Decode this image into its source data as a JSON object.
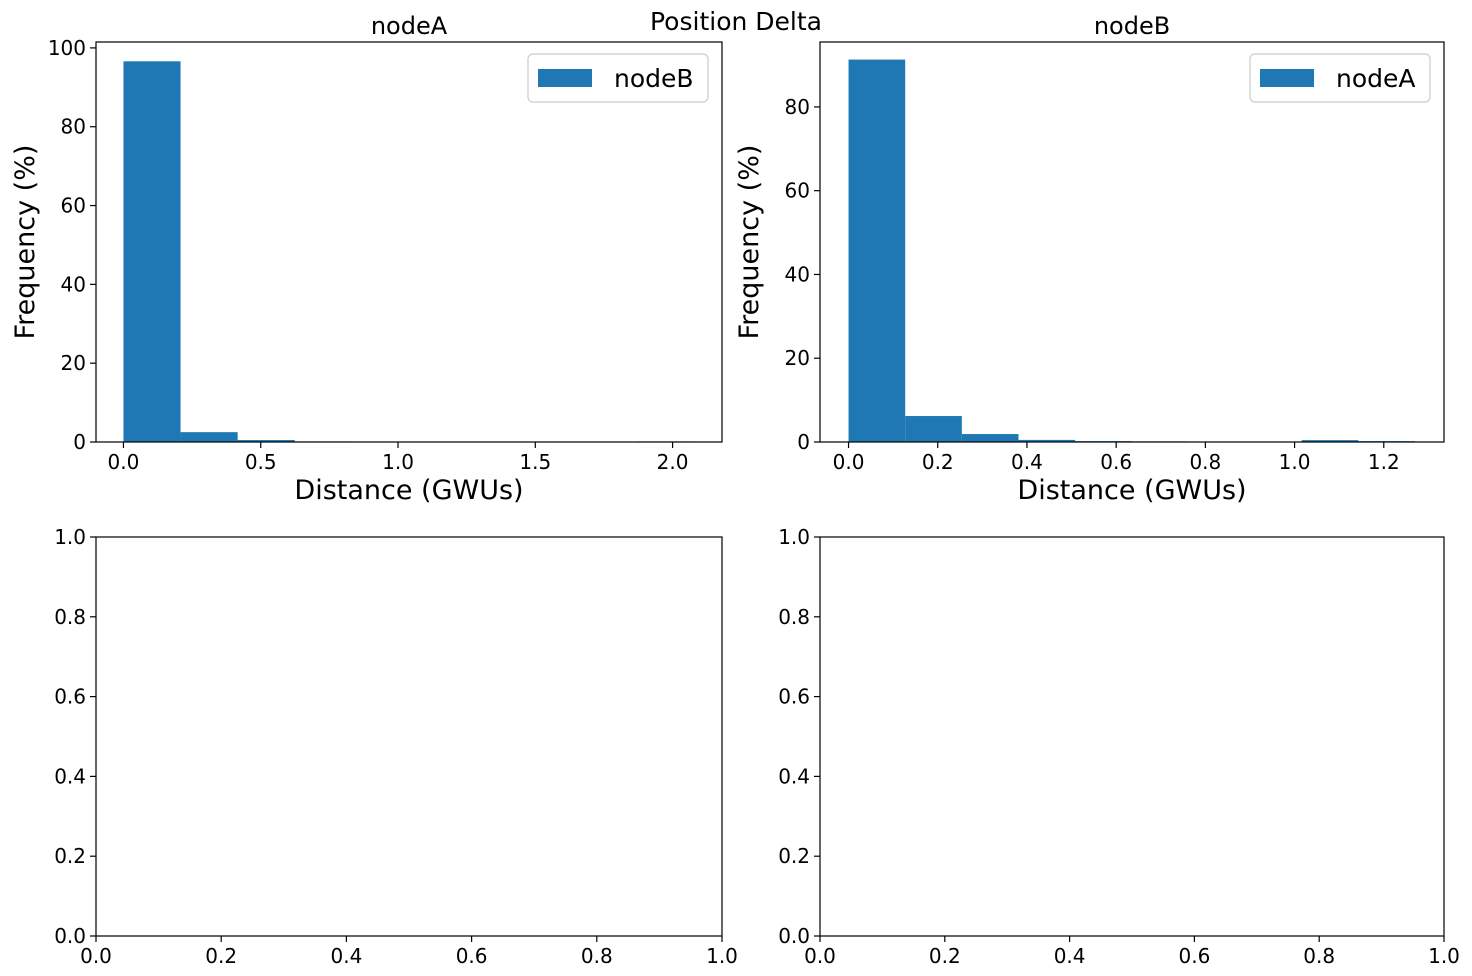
{
  "figure": {
    "suptitle": "Position Delta"
  },
  "colors": {
    "bar": "#1f77b4",
    "axis": "#000000",
    "background": "#ffffff"
  },
  "chart_data": [
    {
      "type": "bar",
      "title": "nodeA",
      "xlabel": "Distance (GWUs)",
      "ylabel": "Frequency (%)",
      "legend": {
        "label": "nodeB",
        "placement": "top-right"
      },
      "xlim": [
        -0.1,
        2.18
      ],
      "ylim": [
        0,
        101.5
      ],
      "xticks": [
        0.0,
        0.5,
        1.0,
        1.5,
        2.0
      ],
      "xtick_labels": [
        "0.0",
        "0.5",
        "1.0",
        "1.5",
        "2.0"
      ],
      "yticks": [
        0,
        20,
        40,
        60,
        80,
        100
      ],
      "ytick_labels": [
        "0",
        "20",
        "40",
        "60",
        "80",
        "100"
      ],
      "bin_edges": [
        0.0,
        0.208,
        0.416,
        0.624,
        0.832,
        1.04,
        1.248,
        1.456,
        1.664,
        1.872,
        2.08
      ],
      "values": [
        96.6,
        2.5,
        0.5,
        0.15,
        0.1,
        0.1,
        0.05,
        0.0,
        0.0,
        0.15
      ]
    },
    {
      "type": "bar",
      "title": "nodeB",
      "xlabel": "Distance (GWUs)",
      "ylabel": "Frequency (%)",
      "legend": {
        "label": "nodeA",
        "placement": "top-right"
      },
      "xlim": [
        -0.064,
        1.335
      ],
      "ylim": [
        0,
        95.5
      ],
      "xticks": [
        0.0,
        0.2,
        0.4,
        0.6,
        0.8,
        1.0,
        1.2
      ],
      "xtick_labels": [
        "0.0",
        "0.2",
        "0.4",
        "0.6",
        "0.8",
        "1.0",
        "1.2"
      ],
      "yticks": [
        0,
        20,
        40,
        60,
        80
      ],
      "ytick_labels": [
        "0",
        "20",
        "40",
        "60",
        "80"
      ],
      "bin_edges": [
        0.0,
        0.127,
        0.254,
        0.381,
        0.508,
        0.635,
        0.762,
        0.889,
        1.016,
        1.143,
        1.27
      ],
      "values": [
        91.3,
        6.2,
        1.9,
        0.5,
        0.2,
        0.15,
        0.0,
        0.0,
        0.45,
        0.2
      ]
    },
    {
      "type": "bar",
      "title": "",
      "xlabel": "",
      "ylabel": "",
      "xlim": [
        0,
        1
      ],
      "ylim": [
        0,
        1
      ],
      "xticks": [
        0.0,
        0.2,
        0.4,
        0.6,
        0.8,
        1.0
      ],
      "xtick_labels": [
        "0.0",
        "0.2",
        "0.4",
        "0.6",
        "0.8",
        "1.0"
      ],
      "yticks": [
        0.0,
        0.2,
        0.4,
        0.6,
        0.8,
        1.0
      ],
      "ytick_labels": [
        "0.0",
        "0.2",
        "0.4",
        "0.6",
        "0.8",
        "1.0"
      ],
      "bin_edges": [],
      "values": []
    },
    {
      "type": "bar",
      "title": "",
      "xlabel": "",
      "ylabel": "",
      "xlim": [
        0,
        1
      ],
      "ylim": [
        0,
        1
      ],
      "xticks": [
        0.0,
        0.2,
        0.4,
        0.6,
        0.8,
        1.0
      ],
      "xtick_labels": [
        "0.0",
        "0.2",
        "0.4",
        "0.6",
        "0.8",
        "1.0"
      ],
      "yticks": [
        0.0,
        0.2,
        0.4,
        0.6,
        0.8,
        1.0
      ],
      "ytick_labels": [
        "0.0",
        "0.2",
        "0.4",
        "0.6",
        "0.8",
        "1.0"
      ],
      "bin_edges": [],
      "values": []
    }
  ]
}
